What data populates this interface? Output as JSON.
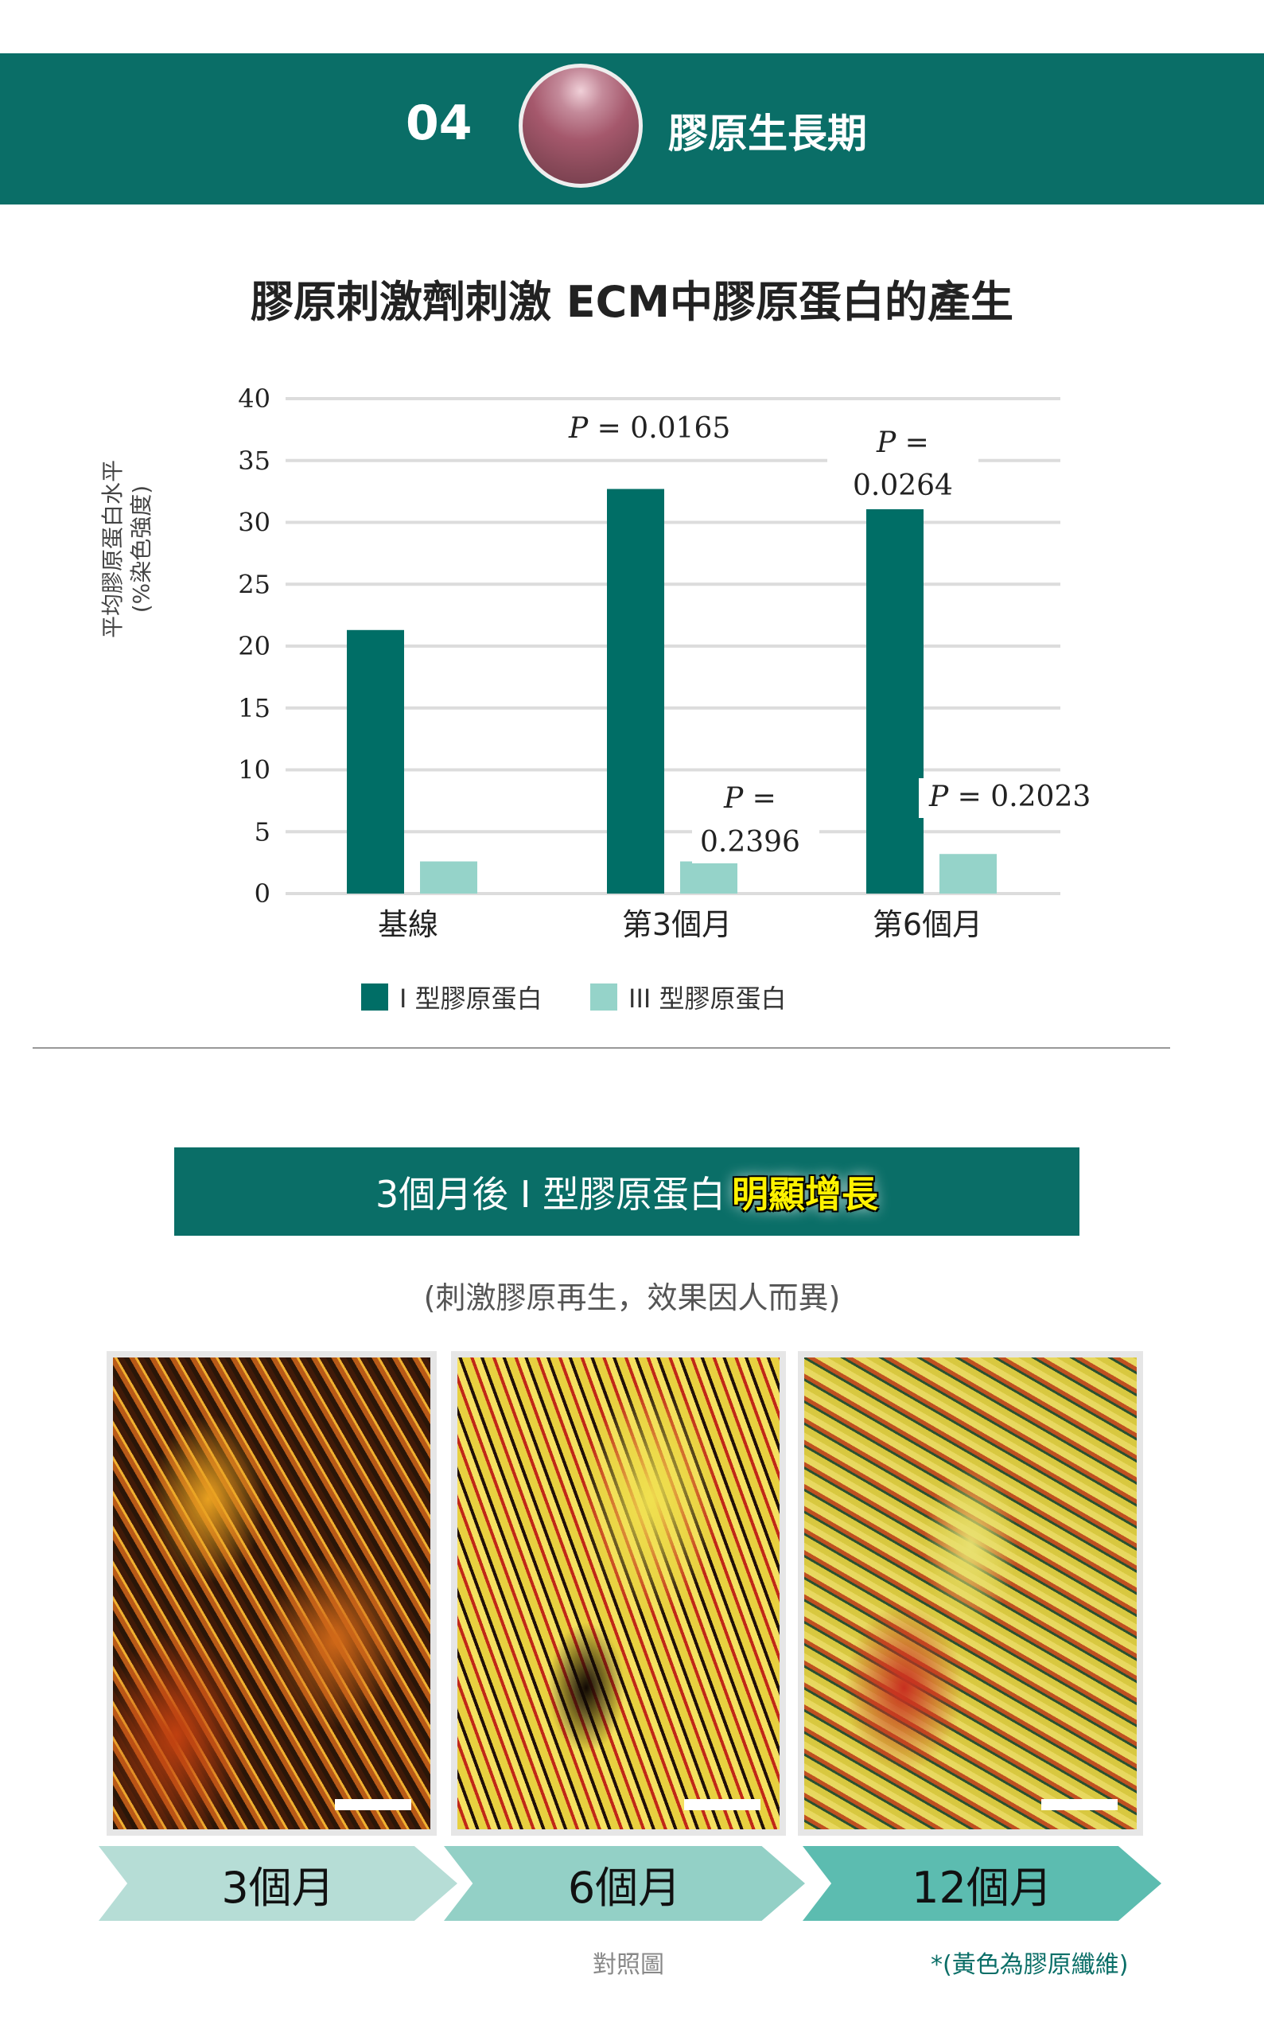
{
  "header": {
    "number": "04",
    "title": "膠原生長期"
  },
  "chart_data": {
    "type": "bar",
    "title": "膠原刺激劑刺激 ECM中膠原蛋白的產生",
    "ylabel": [
      "平均膠原蛋白水平",
      "(%染色強度)"
    ],
    "xlabel": "",
    "ylim": [
      0,
      40
    ],
    "yticks": [
      0,
      5,
      10,
      15,
      20,
      25,
      30,
      35,
      40
    ],
    "grid": true,
    "legend": "bottom",
    "categories": [
      "基線",
      "第3個月",
      "第6個月"
    ],
    "series": [
      {
        "name": "I 型膠原蛋白",
        "color": "#006e66",
        "values": [
          21.3,
          32.7,
          31.5
        ]
      },
      {
        "name": "III 型膠原蛋白",
        "color": "#95d3c9",
        "values": [
          2.6,
          2.6,
          3.2
        ]
      }
    ],
    "annotations": [
      {
        "text_p": "P",
        "text_rest": "= 0.0165"
      },
      {
        "text_p": "P",
        "text_rest": "=",
        "line2": "0.0264"
      },
      {
        "text_p": "P",
        "text_rest": "=",
        "line2": "0.2396"
      },
      {
        "text_p": "P",
        "text_rest": "= 0.2023"
      }
    ]
  },
  "banner": {
    "text": "3個月後 I 型膠原蛋白",
    "highlight": "明顯增長"
  },
  "subtitle": "(刺激膠原再生，效果因人而異)",
  "timeline": [
    {
      "label": "3個月",
      "color": "#b6ddd6"
    },
    {
      "label": "6個月",
      "color": "#93d0c6"
    },
    {
      "label": "12個月",
      "color": "#5cbcb0"
    }
  ],
  "footer": {
    "reference": "對照圖",
    "note": "*(黃色為膠原纖維)"
  }
}
